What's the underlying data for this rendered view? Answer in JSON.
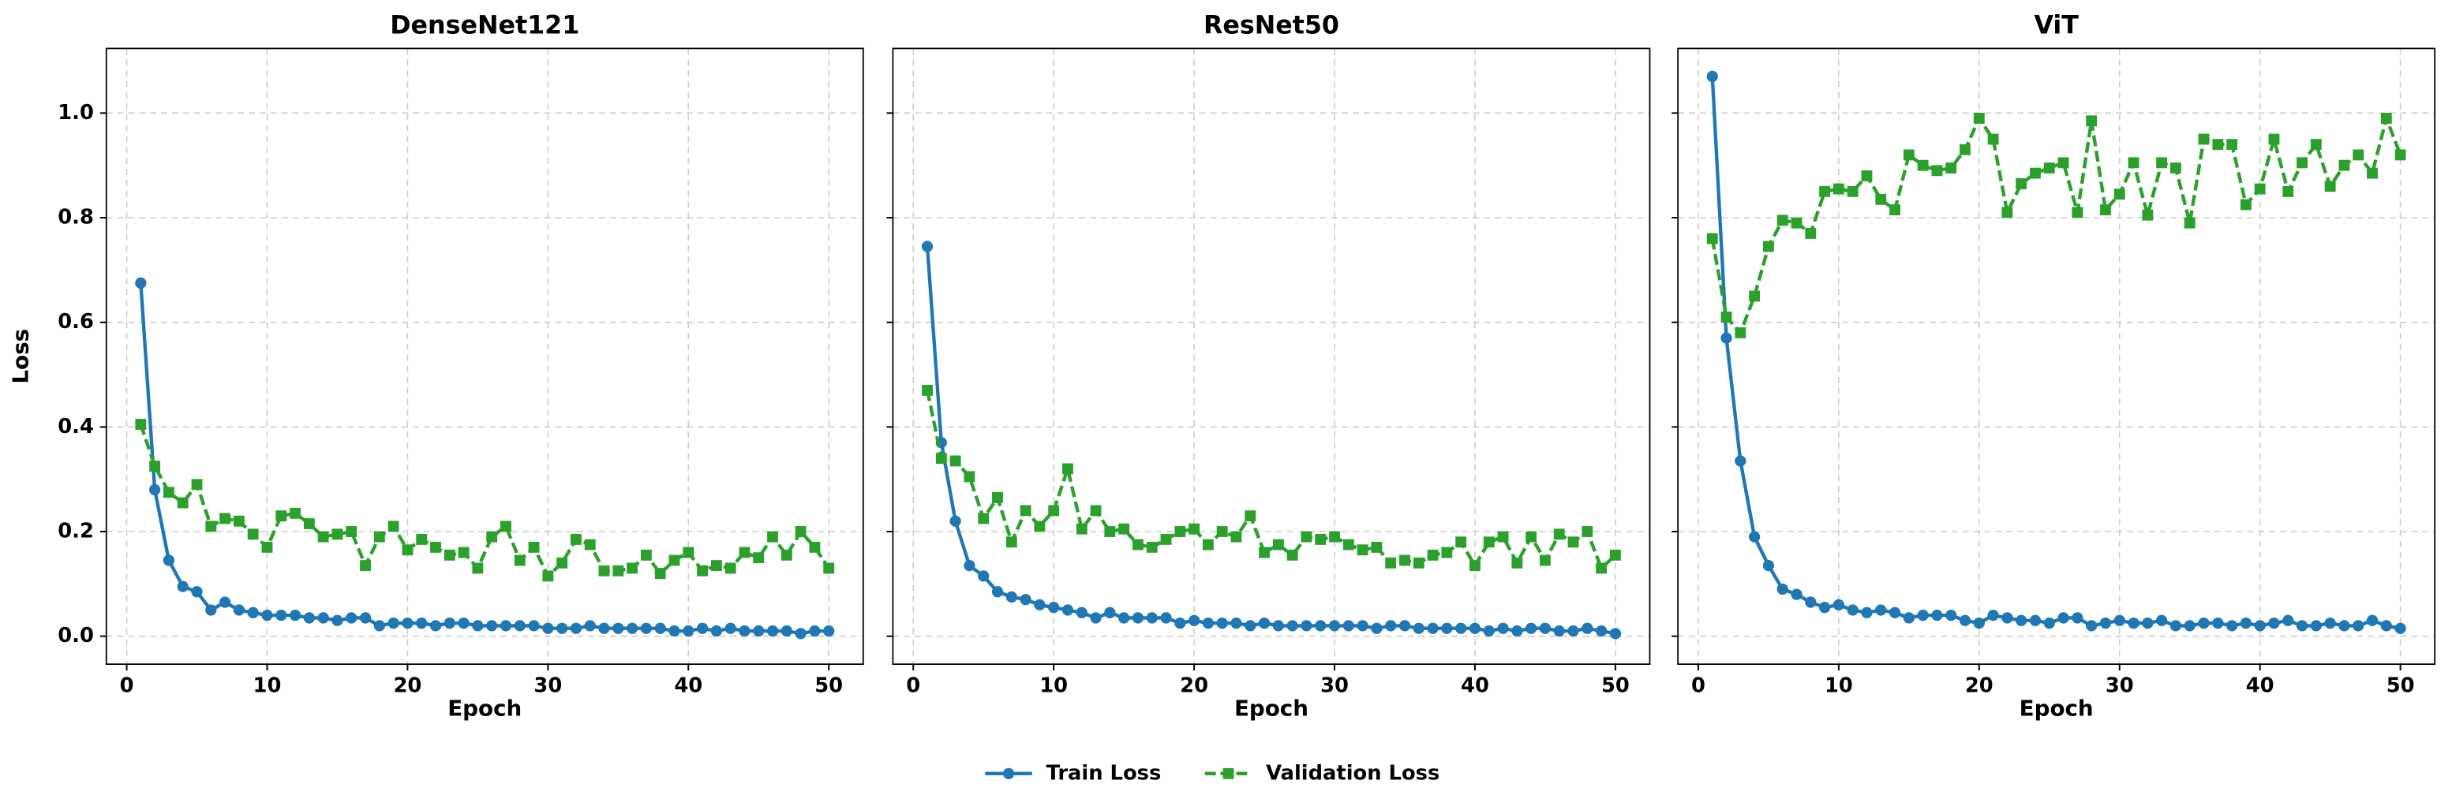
{
  "chart_data": [
    {
      "type": "line",
      "title": "DenseNet121",
      "x_label": "Epoch",
      "y_label": "Loss",
      "x": [
        1,
        2,
        3,
        4,
        5,
        6,
        7,
        8,
        9,
        10,
        11,
        12,
        13,
        14,
        15,
        16,
        17,
        18,
        19,
        20,
        21,
        22,
        23,
        24,
        25,
        26,
        27,
        28,
        29,
        30,
        31,
        32,
        33,
        34,
        35,
        36,
        37,
        38,
        39,
        40,
        41,
        42,
        43,
        44,
        45,
        46,
        47,
        48,
        49,
        50
      ],
      "xlim": [
        -1.45,
        52.45
      ],
      "xticks": [
        0,
        10,
        20,
        30,
        40,
        50
      ],
      "ylim": [
        -0.0535,
        1.1235
      ],
      "yticks": [
        {
          "value": 0,
          "label": "0.0"
        },
        0.2,
        0.4,
        0.6,
        0.8,
        {
          "value": 1,
          "label": "1.0"
        }
      ],
      "grid": true,
      "legend": "lower center",
      "series": [
        {
          "name": "Train Loss",
          "color": "#1f77b4",
          "linestyle": "solid",
          "marker": "circle",
          "values": [
            0.675,
            0.28,
            0.145,
            0.095,
            0.085,
            0.05,
            0.065,
            0.05,
            0.045,
            0.04,
            0.04,
            0.04,
            0.035,
            0.035,
            0.03,
            0.035,
            0.035,
            0.02,
            0.025,
            0.025,
            0.025,
            0.02,
            0.025,
            0.025,
            0.02,
            0.02,
            0.02,
            0.02,
            0.02,
            0.015,
            0.015,
            0.015,
            0.02,
            0.015,
            0.015,
            0.015,
            0.015,
            0.015,
            0.01,
            0.01,
            0.015,
            0.01,
            0.015,
            0.01,
            0.01,
            0.01,
            0.01,
            0.005,
            0.01,
            0.01
          ]
        },
        {
          "name": "Validation Loss",
          "color": "#2ca02c",
          "linestyle": "dashed",
          "marker": "square",
          "values": [
            0.405,
            0.325,
            0.275,
            0.255,
            0.29,
            0.21,
            0.225,
            0.22,
            0.195,
            0.17,
            0.23,
            0.235,
            0.215,
            0.19,
            0.195,
            0.2,
            0.135,
            0.19,
            0.21,
            0.165,
            0.185,
            0.17,
            0.155,
            0.16,
            0.13,
            0.19,
            0.21,
            0.145,
            0.17,
            0.115,
            0.14,
            0.185,
            0.175,
            0.125,
            0.125,
            0.13,
            0.155,
            0.12,
            0.145,
            0.16,
            0.125,
            0.135,
            0.13,
            0.16,
            0.15,
            0.19,
            0.155,
            0.2,
            0.17,
            0.13
          ]
        }
      ]
    },
    {
      "type": "line",
      "title": "ResNet50",
      "x_label": "Epoch",
      "x": [
        1,
        2,
        3,
        4,
        5,
        6,
        7,
        8,
        9,
        10,
        11,
        12,
        13,
        14,
        15,
        16,
        17,
        18,
        19,
        20,
        21,
        22,
        23,
        24,
        25,
        26,
        27,
        28,
        29,
        30,
        31,
        32,
        33,
        34,
        35,
        36,
        37,
        38,
        39,
        40,
        41,
        42,
        43,
        44,
        45,
        46,
        47,
        48,
        49,
        50
      ],
      "xlim": [
        -1.45,
        52.45
      ],
      "xticks": [
        0,
        10,
        20,
        30,
        40,
        50
      ],
      "grid": true,
      "series": [
        {
          "name": "Train Loss",
          "color": "#1f77b4",
          "linestyle": "solid",
          "marker": "circle",
          "values": [
            0.745,
            0.37,
            0.22,
            0.135,
            0.115,
            0.085,
            0.075,
            0.07,
            0.06,
            0.055,
            0.05,
            0.045,
            0.035,
            0.045,
            0.035,
            0.035,
            0.035,
            0.035,
            0.025,
            0.03,
            0.025,
            0.025,
            0.025,
            0.02,
            0.025,
            0.02,
            0.02,
            0.02,
            0.02,
            0.02,
            0.02,
            0.02,
            0.015,
            0.02,
            0.02,
            0.015,
            0.015,
            0.015,
            0.015,
            0.015,
            0.01,
            0.015,
            0.01,
            0.015,
            0.015,
            0.01,
            0.01,
            0.015,
            0.01,
            0.005
          ]
        },
        {
          "name": "Validation Loss",
          "color": "#2ca02c",
          "linestyle": "dashed",
          "marker": "square",
          "values": [
            0.47,
            0.34,
            0.335,
            0.305,
            0.225,
            0.265,
            0.18,
            0.24,
            0.21,
            0.24,
            0.32,
            0.205,
            0.24,
            0.2,
            0.205,
            0.175,
            0.17,
            0.185,
            0.2,
            0.205,
            0.175,
            0.2,
            0.19,
            0.23,
            0.16,
            0.175,
            0.155,
            0.19,
            0.185,
            0.19,
            0.175,
            0.165,
            0.17,
            0.14,
            0.145,
            0.14,
            0.155,
            0.16,
            0.18,
            0.135,
            0.18,
            0.19,
            0.14,
            0.19,
            0.145,
            0.195,
            0.18,
            0.2,
            0.13,
            0.155
          ]
        }
      ]
    },
    {
      "type": "line",
      "title": "ViT",
      "x_label": "Epoch",
      "x": [
        1,
        2,
        3,
        4,
        5,
        6,
        7,
        8,
        9,
        10,
        11,
        12,
        13,
        14,
        15,
        16,
        17,
        18,
        19,
        20,
        21,
        22,
        23,
        24,
        25,
        26,
        27,
        28,
        29,
        30,
        31,
        32,
        33,
        34,
        35,
        36,
        37,
        38,
        39,
        40,
        41,
        42,
        43,
        44,
        45,
        46,
        47,
        48,
        49,
        50
      ],
      "xlim": [
        -1.45,
        52.45
      ],
      "xticks": [
        0,
        10,
        20,
        30,
        40,
        50
      ],
      "grid": true,
      "series": [
        {
          "name": "Train Loss",
          "color": "#1f77b4",
          "linestyle": "solid",
          "marker": "circle",
          "values": [
            1.07,
            0.57,
            0.335,
            0.19,
            0.135,
            0.09,
            0.08,
            0.065,
            0.055,
            0.06,
            0.05,
            0.045,
            0.05,
            0.045,
            0.035,
            0.04,
            0.04,
            0.04,
            0.03,
            0.025,
            0.04,
            0.035,
            0.03,
            0.03,
            0.025,
            0.035,
            0.035,
            0.02,
            0.025,
            0.03,
            0.025,
            0.025,
            0.03,
            0.02,
            0.02,
            0.025,
            0.025,
            0.02,
            0.025,
            0.02,
            0.025,
            0.03,
            0.02,
            0.02,
            0.025,
            0.02,
            0.02,
            0.03,
            0.02,
            0.015
          ]
        },
        {
          "name": "Validation Loss",
          "color": "#2ca02c",
          "linestyle": "dashed",
          "marker": "square",
          "values": [
            0.76,
            0.61,
            0.58,
            0.65,
            0.745,
            0.795,
            0.79,
            0.77,
            0.85,
            0.855,
            0.85,
            0.88,
            0.835,
            0.815,
            0.92,
            0.9,
            0.89,
            0.895,
            0.93,
            0.99,
            0.95,
            0.81,
            0.865,
            0.885,
            0.895,
            0.905,
            0.81,
            0.985,
            0.815,
            0.845,
            0.905,
            0.805,
            0.905,
            0.895,
            0.79,
            0.95,
            0.94,
            0.94,
            0.825,
            0.855,
            0.95,
            0.85,
            0.905,
            0.94,
            0.86,
            0.9,
            0.92,
            0.885,
            0.99,
            0.92
          ]
        }
      ]
    }
  ]
}
